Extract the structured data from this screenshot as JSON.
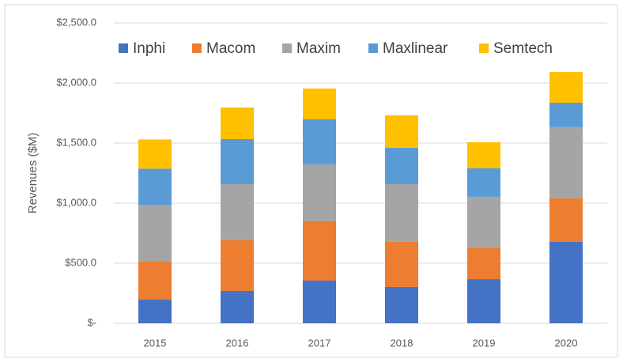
{
  "chart_data": {
    "type": "stacked_bar",
    "y_label": "Revenues ($M)",
    "categories": [
      "2015",
      "2016",
      "2017",
      "2018",
      "2019",
      "2020"
    ],
    "series": [
      {
        "name": "Inphi",
        "color": "#4472c4",
        "values": [
          197,
          270,
          355,
          303,
          368,
          678
        ]
      },
      {
        "name": "Macom",
        "color": "#ed7d31",
        "values": [
          320,
          421,
          494,
          375,
          257,
          362
        ]
      },
      {
        "name": "Maxim",
        "color": "#a5a5a5",
        "values": [
          467,
          467,
          474,
          480,
          428,
          592
        ]
      },
      {
        "name": "Maxlinear",
        "color": "#5b9bd5",
        "values": [
          303,
          375,
          375,
          303,
          237,
          204
        ]
      },
      {
        "name": "Semtech",
        "color": "#ffc000",
        "values": [
          243,
          263,
          256,
          270,
          217,
          256
        ]
      }
    ],
    "ylim": [
      0,
      2500
    ],
    "yticks": [
      {
        "value": 0,
        "label": "$-"
      },
      {
        "value": 500,
        "label": "$500.0"
      },
      {
        "value": 1000,
        "label": "$1,000.0"
      },
      {
        "value": 1500,
        "label": "$1,500.0"
      },
      {
        "value": 2000,
        "label": "$2,000.0"
      },
      {
        "value": 2500,
        "label": "$2,500.0"
      }
    ],
    "grid": true,
    "legend": "top"
  }
}
